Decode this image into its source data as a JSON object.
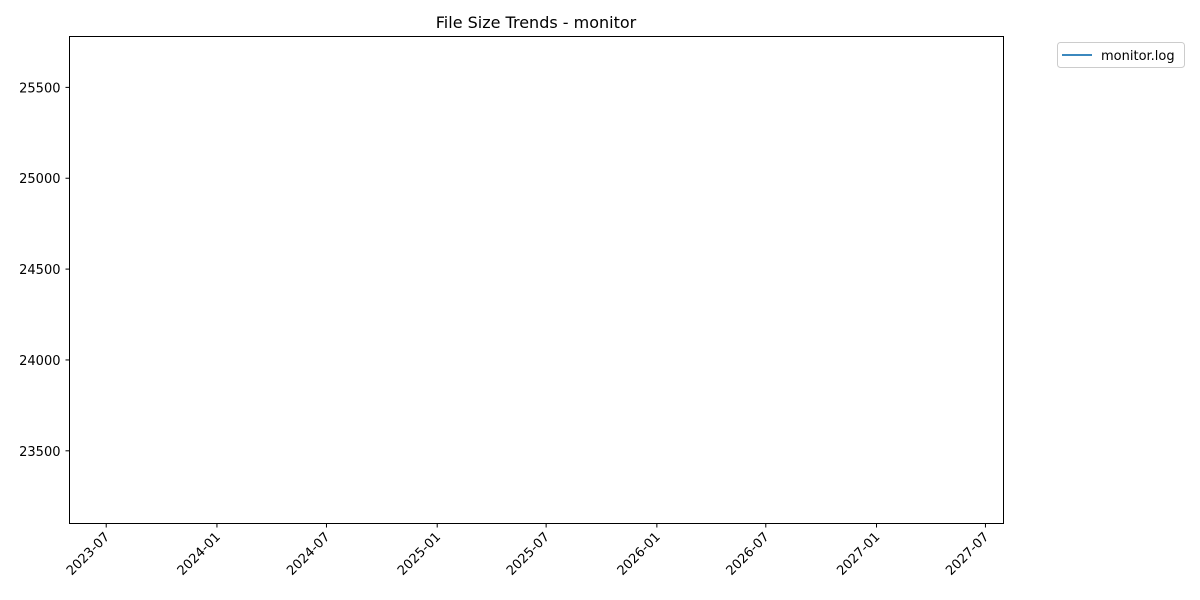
{
  "chart_data": {
    "type": "line",
    "title": "File Size Trends - monitor",
    "xlabel": "",
    "ylabel": "",
    "x_axis": "date",
    "x_ticks": [
      "2023-07",
      "2024-01",
      "2024-07",
      "2025-01",
      "2025-07",
      "2026-01",
      "2026-07",
      "2027-01",
      "2027-07"
    ],
    "y_ticks": [
      23500,
      24000,
      24500,
      25000,
      25500
    ],
    "ylim": [
      23100,
      25780
    ],
    "xlim": [
      "2023-05-01",
      "2027-07-31"
    ],
    "grid": false,
    "legend_position": "outside-top-right",
    "series": [
      {
        "name": "monitor.log",
        "color": "#1f77b4",
        "x": [],
        "y": []
      }
    ]
  }
}
